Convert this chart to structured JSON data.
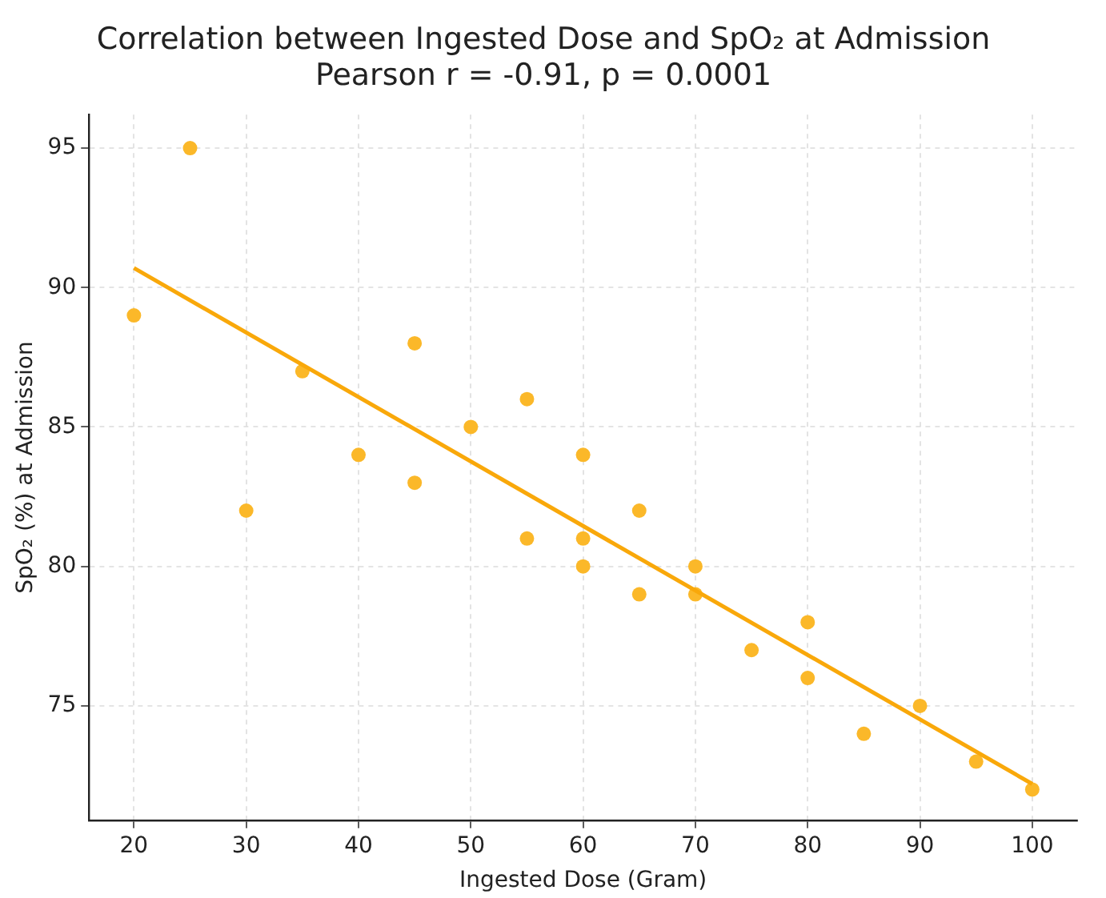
{
  "chart_data": {
    "type": "scatter",
    "title": "Correlation between Ingested Dose and SpO₂ at Admission",
    "subtitle": "Pearson r = -0.91, p = 0.0001",
    "xlabel": "Ingested Dose (Gram)",
    "ylabel": "SpO₂ (%) at Admission",
    "series": [
      {
        "color": "#fbb829",
        "x": [
          20,
          25,
          30,
          35,
          40,
          45,
          45,
          50,
          55,
          55,
          60,
          60,
          60,
          65,
          65,
          70,
          70,
          75,
          80,
          80,
          85,
          90,
          95,
          100
        ],
        "values": [
          89,
          95,
          82,
          87,
          84,
          88,
          83,
          85,
          86,
          81,
          84,
          81,
          80,
          82,
          79,
          80,
          79,
          77,
          78,
          76,
          74,
          75,
          73,
          72
        ]
      },
      {
        "type": "line",
        "marker": "none",
        "color": "#f9a80a",
        "x": [
          20,
          100
        ],
        "values": [
          90.7,
          72.2
        ]
      }
    ],
    "xlim": [
      16,
      104
    ],
    "xticks": [
      20,
      30,
      40,
      50,
      60,
      70,
      80,
      90,
      100
    ],
    "ylim": [
      70.9,
      96.2
    ],
    "yticks": [
      75,
      80,
      85,
      90,
      95
    ],
    "grid": true,
    "legend": false,
    "marker": "circle"
  }
}
